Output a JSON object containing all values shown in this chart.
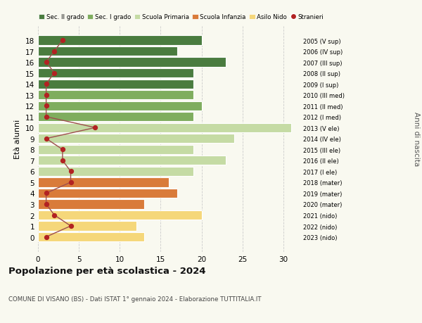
{
  "ages": [
    18,
    17,
    16,
    15,
    14,
    13,
    12,
    11,
    10,
    9,
    8,
    7,
    6,
    5,
    4,
    3,
    2,
    1,
    0
  ],
  "bar_values": [
    20,
    17,
    23,
    19,
    19,
    19,
    20,
    19,
    31,
    24,
    19,
    23,
    19,
    16,
    17,
    13,
    20,
    12,
    13
  ],
  "stranieri": [
    3,
    2,
    1,
    2,
    1,
    1,
    1,
    1,
    7,
    1,
    3,
    3,
    4,
    4,
    1,
    1,
    2,
    4,
    1
  ],
  "right_labels": [
    "2005 (V sup)",
    "2006 (IV sup)",
    "2007 (III sup)",
    "2008 (II sup)",
    "2009 (I sup)",
    "2010 (III med)",
    "2011 (II med)",
    "2012 (I med)",
    "2013 (V ele)",
    "2014 (IV ele)",
    "2015 (III ele)",
    "2016 (II ele)",
    "2017 (I ele)",
    "2018 (mater)",
    "2019 (mater)",
    "2020 (mater)",
    "2021 (nido)",
    "2022 (nido)",
    "2023 (nido)"
  ],
  "bar_colors": [
    "#4a7c3f",
    "#4a7c3f",
    "#4a7c3f",
    "#4a7c3f",
    "#4a7c3f",
    "#7fad5e",
    "#7fad5e",
    "#7fad5e",
    "#c5dba4",
    "#c5dba4",
    "#c5dba4",
    "#c5dba4",
    "#c5dba4",
    "#d97b3a",
    "#d97b3a",
    "#d97b3a",
    "#f5d77a",
    "#f5d77a",
    "#f5d77a"
  ],
  "legend_labels": [
    "Sec. II grado",
    "Sec. I grado",
    "Scuola Primaria",
    "Scuola Infanzia",
    "Asilo Nido",
    "Stranieri"
  ],
  "legend_colors": [
    "#4a7c3f",
    "#7fad5e",
    "#c5dba4",
    "#d97b3a",
    "#f5d77a",
    "#b22222"
  ],
  "stranieri_color": "#b22222",
  "stranieri_line_color": "#9e4e4e",
  "title": "Popolazione per età scolastica - 2024",
  "subtitle": "COMUNE DI VISANO (BS) - Dati ISTAT 1° gennaio 2024 - Elaborazione TUTTITALIA.IT",
  "ylabel": "Età alunni",
  "right_ylabel": "Anni di nascita",
  "xlim": [
    0,
    32
  ],
  "xticks": [
    0,
    5,
    10,
    15,
    20,
    25,
    30
  ],
  "background_color": "#f9f9f0",
  "grid_color": "#cccccc"
}
